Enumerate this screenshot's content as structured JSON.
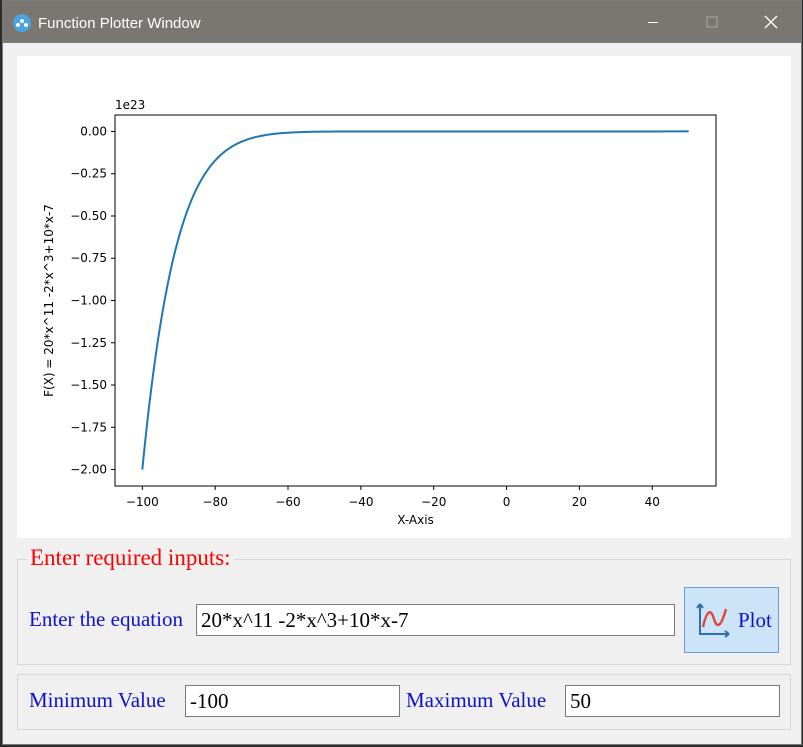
{
  "window": {
    "title": "Function Plotter Window"
  },
  "chart_data": {
    "type": "line",
    "function": "20*x^11 -2*x^3+10*x-7",
    "x_range": [
      -100,
      50
    ],
    "xlim": [
      -107.5,
      57.5
    ],
    "ylim": [
      -2.0974,
      0.0974
    ],
    "xlabel": "X-Axis",
    "ylabel": "F(X) = 20*x^11 -2*x^3+10*x-7",
    "y_scale_label": "1e23",
    "x_ticks": [
      -100,
      -80,
      -60,
      -40,
      -20,
      0,
      20,
      40
    ],
    "x_tick_labels": [
      "−100",
      "−80",
      "−60",
      "−40",
      "−20",
      "0",
      "20",
      "40"
    ],
    "y_ticks": [
      0,
      -0.25,
      -0.5,
      -0.75,
      -1.0,
      -1.25,
      -1.5,
      -1.75,
      -2.0
    ],
    "y_tick_labels": [
      "0.00",
      "−0.25",
      "−0.50",
      "−0.75",
      "−1.00",
      "−1.25",
      "−1.50",
      "−1.75",
      "−2.00"
    ],
    "line_color": "#1f77b4",
    "grid": false
  },
  "inputs": {
    "legend": "Enter required inputs:",
    "equation_label": "Enter the equation",
    "equation_value": "20*x^11 -2*x^3+10*x-7",
    "plot_button": "Plot",
    "min_label": "Minimum Value",
    "min_value": "-100",
    "max_label": "Maximum Value",
    "max_value": "50"
  },
  "colors": {
    "title_bar": "#7a7773",
    "label_text": "#1010d0",
    "legend_text": "#ff0000",
    "plot_button_bg": "#cce4f7"
  }
}
